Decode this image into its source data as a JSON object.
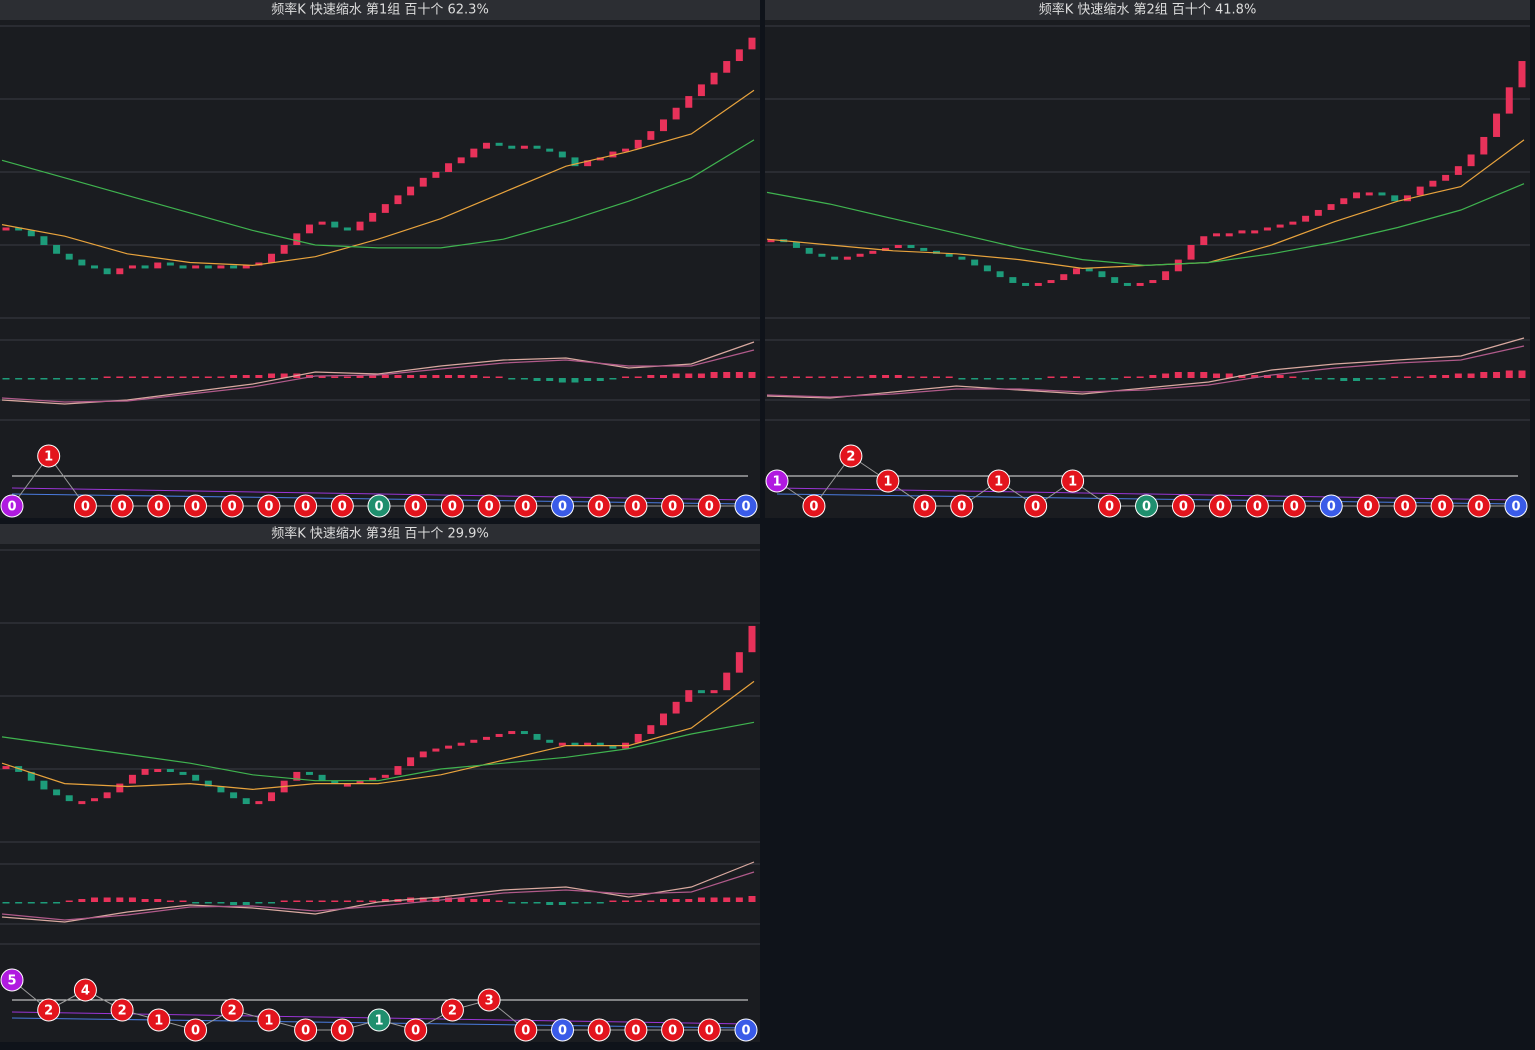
{
  "style": {
    "up_color": "#e8325a",
    "down_color": "#1d9c7a",
    "ma_fast_color": "#e8a33d",
    "ma_slow_color": "#3fb34f",
    "dif_color": "#d9a9a0",
    "dea_color": "#b05a8a"
  },
  "panels": [
    {
      "title": "频率K  快速缩水  第1组  百十个  62.3%",
      "ylim": [
        0,
        100
      ],
      "candles": [
        31,
        30,
        28,
        25,
        22,
        20,
        18,
        17,
        15,
        17,
        18,
        17,
        19,
        18,
        17,
        18,
        17,
        18,
        17,
        18,
        19,
        22,
        25,
        29,
        32,
        33,
        31,
        30,
        33,
        36,
        39,
        42,
        45,
        48,
        50,
        53,
        55,
        58,
        60,
        59,
        58,
        59,
        58,
        57,
        55,
        52,
        54,
        55,
        57,
        58,
        61,
        64,
        68,
        72,
        76,
        80,
        84,
        88,
        92,
        96
      ],
      "ma_fast": [
        32,
        28,
        22,
        19,
        18,
        21,
        27,
        34,
        43,
        52,
        57,
        63,
        78
      ],
      "ma_slow": [
        54,
        48,
        42,
        36,
        30,
        25,
        24,
        24,
        27,
        33,
        40,
        48,
        61
      ],
      "macd_hist": [
        -1,
        -1,
        -1,
        -1,
        -1,
        -1,
        -1,
        -1,
        1,
        1,
        1,
        1,
        1,
        1,
        1,
        1,
        1,
        1,
        2,
        2,
        2,
        3,
        3,
        3,
        2,
        1,
        1,
        1,
        2,
        2,
        2,
        2,
        2,
        2,
        2,
        2,
        2,
        2,
        1,
        1,
        -1,
        -1,
        -2,
        -2,
        -3,
        -3,
        -2,
        -2,
        -1,
        1,
        1,
        2,
        2,
        3,
        3,
        3,
        4,
        4,
        4,
        4
      ],
      "dif": [
        -22,
        -26,
        -22,
        -14,
        -6,
        6,
        4,
        12,
        18,
        20,
        10,
        14,
        36
      ],
      "dea": [
        -20,
        -24,
        -23,
        -16,
        -9,
        2,
        3,
        9,
        15,
        18,
        12,
        12,
        28
      ],
      "counts": [
        0,
        1,
        0,
        0,
        0,
        0,
        0,
        0,
        0,
        0,
        0,
        0,
        0,
        0,
        0,
        0,
        0,
        0,
        0,
        0,
        0
      ],
      "count_colors": [
        "#b01ae0",
        "#e3141d",
        "#e3141d",
        "#e3141d",
        "#e3141d",
        "#e3141d",
        "#e3141d",
        "#e3141d",
        "#e3141d",
        "#e3141d",
        "#1f8f6e",
        "#e3141d",
        "#e3141d",
        "#e3141d",
        "#e3141d",
        "#3a5be8",
        "#e3141d",
        "#e3141d",
        "#e3141d",
        "#e3141d",
        "#3a5be8"
      ]
    },
    {
      "title": "频率K  快速缩水  第2组  百十个  41.8%",
      "ylim": [
        0,
        100
      ],
      "candles": [
        27,
        26,
        24,
        22,
        21,
        20,
        21,
        22,
        23,
        24,
        25,
        24,
        23,
        22,
        21,
        20,
        18,
        16,
        14,
        12,
        11,
        12,
        13,
        15,
        17,
        16,
        14,
        12,
        11,
        12,
        13,
        16,
        20,
        25,
        28,
        29,
        29,
        30,
        30,
        31,
        32,
        33,
        35,
        37,
        39,
        41,
        43,
        43,
        42,
        40,
        42,
        45,
        47,
        49,
        52,
        56,
        62,
        70,
        79,
        88
      ],
      "ma_fast": [
        27,
        25,
        23,
        22,
        20,
        17,
        18,
        19,
        25,
        33,
        40,
        45,
        61
      ],
      "ma_slow": [
        43,
        39,
        34,
        29,
        24,
        20,
        18,
        19,
        22,
        26,
        31,
        37,
        46
      ],
      "macd_hist": [
        1,
        1,
        1,
        1,
        1,
        1,
        1,
        1,
        2,
        2,
        2,
        1,
        1,
        1,
        1,
        -1,
        -1,
        -1,
        -1,
        -1,
        -1,
        -1,
        1,
        1,
        1,
        -1,
        -1,
        -1,
        1,
        1,
        2,
        3,
        4,
        4,
        4,
        3,
        3,
        2,
        2,
        2,
        2,
        1,
        -1,
        -1,
        -1,
        -2,
        -2,
        -1,
        -1,
        1,
        1,
        1,
        2,
        2,
        3,
        3,
        4,
        4,
        5,
        5
      ],
      "dif": [
        -18,
        -20,
        -14,
        -8,
        -12,
        -16,
        -10,
        -4,
        8,
        14,
        18,
        22,
        40
      ],
      "dea": [
        -17,
        -19,
        -16,
        -11,
        -11,
        -14,
        -12,
        -7,
        3,
        10,
        15,
        18,
        32
      ],
      "counts": [
        1,
        0,
        2,
        1,
        0,
        0,
        1,
        0,
        1,
        0,
        0,
        0,
        0,
        0,
        0,
        0,
        0,
        0,
        0,
        0,
        0
      ],
      "count_colors": [
        "#b01ae0",
        "#e3141d",
        "#e3141d",
        "#e3141d",
        "#e3141d",
        "#e3141d",
        "#e3141d",
        "#e3141d",
        "#e3141d",
        "#e3141d",
        "#1f8f6e",
        "#e3141d",
        "#e3141d",
        "#e3141d",
        "#e3141d",
        "#3a5be8",
        "#e3141d",
        "#e3141d",
        "#e3141d",
        "#e3141d",
        "#3a5be8"
      ]
    },
    {
      "title": "频率K  快速缩水  第3组  百十个  29.9%",
      "ylim": [
        0,
        100
      ],
      "candles": [
        26,
        24,
        21,
        18,
        16,
        14,
        14,
        15,
        17,
        20,
        23,
        25,
        25,
        24,
        23,
        21,
        19,
        17,
        15,
        13,
        14,
        17,
        21,
        24,
        23,
        21,
        20,
        20,
        21,
        22,
        23,
        26,
        29,
        31,
        32,
        33,
        34,
        35,
        36,
        37,
        38,
        37,
        35,
        34,
        34,
        33,
        34,
        33,
        32,
        34,
        37,
        40,
        44,
        48,
        52,
        51,
        52,
        58,
        65,
        74
      ],
      "ma_fast": [
        27,
        20,
        19,
        20,
        18,
        20,
        20,
        23,
        28,
        33,
        33,
        39,
        55
      ],
      "ma_slow": [
        36,
        33,
        30,
        27,
        23,
        21,
        21,
        25,
        27,
        29,
        32,
        37,
        41
      ],
      "macd_hist": [
        -1,
        -1,
        -1,
        -1,
        -1,
        1,
        2,
        3,
        3,
        3,
        3,
        2,
        2,
        1,
        1,
        -1,
        -1,
        -1,
        -2,
        -2,
        -1,
        -1,
        1,
        1,
        1,
        1,
        1,
        1,
        1,
        1,
        2,
        2,
        3,
        3,
        3,
        3,
        3,
        2,
        2,
        1,
        -1,
        -1,
        -1,
        -2,
        -2,
        -1,
        -1,
        -1,
        1,
        1,
        1,
        1,
        2,
        2,
        2,
        3,
        3,
        3,
        3,
        4
      ],
      "dif": [
        -15,
        -20,
        -10,
        -3,
        -6,
        -12,
        0,
        5,
        12,
        15,
        5,
        15,
        40
      ],
      "dea": [
        -12,
        -18,
        -13,
        -5,
        -4,
        -9,
        -4,
        2,
        9,
        12,
        8,
        10,
        30
      ],
      "counts": [
        5,
        2,
        4,
        2,
        1,
        0,
        2,
        1,
        0,
        0,
        1,
        0,
        2,
        3,
        0,
        0,
        0,
        0,
        0,
        0,
        0
      ],
      "count_colors": [
        "#b01ae0",
        "#e3141d",
        "#e3141d",
        "#e3141d",
        "#e3141d",
        "#e3141d",
        "#e3141d",
        "#e3141d",
        "#e3141d",
        "#e3141d",
        "#1f8f6e",
        "#e3141d",
        "#e3141d",
        "#e3141d",
        "#e3141d",
        "#3a5be8",
        "#e3141d",
        "#e3141d",
        "#e3141d",
        "#e3141d",
        "#3a5be8"
      ]
    }
  ]
}
